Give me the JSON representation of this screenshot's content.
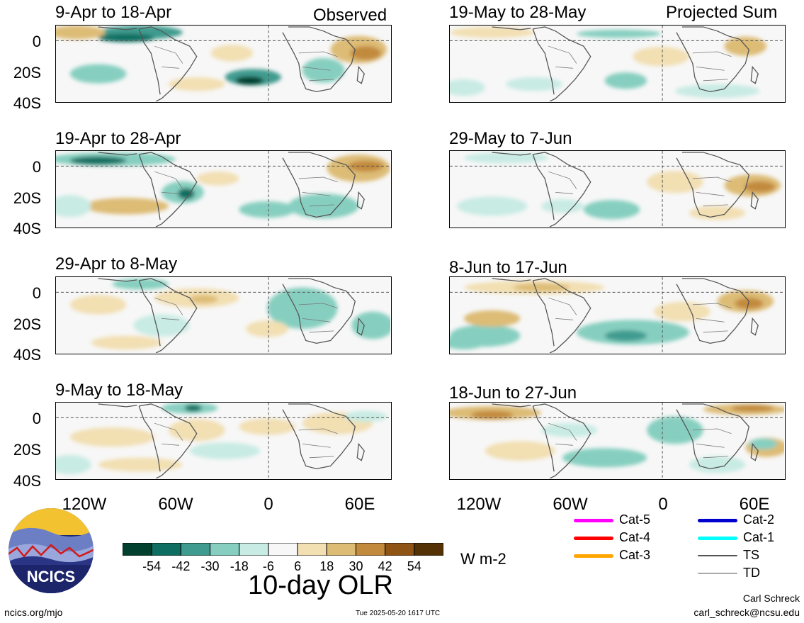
{
  "columns": {
    "left_title": "Observed",
    "right_title": "Projected Sum"
  },
  "panels": [
    {
      "id": "p1",
      "label": "9-Apr to 18-Apr"
    },
    {
      "id": "p2",
      "label": "19-Apr to 28-Apr"
    },
    {
      "id": "p3",
      "label": "29-Apr to 8-May"
    },
    {
      "id": "p4",
      "label": "9-May to 18-May"
    },
    {
      "id": "p5",
      "label": "19-May to 28-May"
    },
    {
      "id": "p6",
      "label": "29-May to 7-Jun"
    },
    {
      "id": "p7",
      "label": "8-Jun to 17-Jun"
    },
    {
      "id": "p8",
      "label": "18-Jun to 27-Jun"
    }
  ],
  "axes": {
    "y_ticks": [
      "0",
      "20S",
      "40S"
    ],
    "x_ticks": [
      "120W",
      "60W",
      "0",
      "60E"
    ]
  },
  "colorbar": {
    "title": "10-day OLR",
    "unit": "W m-2",
    "tick_labels": [
      "-54",
      "-42",
      "-30",
      "-18",
      "-6",
      "6",
      "18",
      "30",
      "42",
      "54"
    ],
    "colors": [
      "#01402f",
      "#0e6e61",
      "#3f9b8f",
      "#86cfc0",
      "#c8ebe3",
      "#f7f7f7",
      "#f2dfb2",
      "#ddbc76",
      "#c28a3c",
      "#8f5414",
      "#553206"
    ]
  },
  "legend": {
    "items": [
      {
        "label": "Cat-5",
        "color": "#ff00ff"
      },
      {
        "label": "Cat-4",
        "color": "#ff0000"
      },
      {
        "label": "Cat-3",
        "color": "#ffa500"
      },
      {
        "label": "Cat-2",
        "color": "#0000cc"
      },
      {
        "label": "Cat-1",
        "color": "#00ffff"
      },
      {
        "label": "TS",
        "color": "#555555"
      },
      {
        "label": "TD",
        "color": "#aaaaaa"
      }
    ]
  },
  "logo": {
    "text": "NCICS"
  },
  "footer": {
    "site": "ncics.org/mjo",
    "timestamp": "Tue 2025-05-20 1617 UTC",
    "author": "Carl Schreck",
    "email": "carl_schreck@ncsu.edu"
  }
}
